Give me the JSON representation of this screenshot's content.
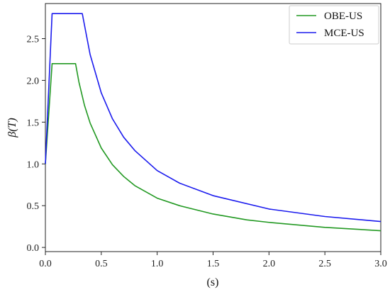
{
  "chart_data": {
    "type": "line",
    "xlabel": "(s)",
    "ylabel": "β(T)",
    "xlim": [
      0.0,
      3.0
    ],
    "ylim": [
      -0.05,
      2.92
    ],
    "x_ticks": [
      0.0,
      0.5,
      1.0,
      1.5,
      2.0,
      2.5,
      3.0
    ],
    "x_tick_labels": [
      "0.0",
      "0.5",
      "1.0",
      "1.5",
      "2.0",
      "2.5",
      "3.0"
    ],
    "y_ticks": [
      0.0,
      0.5,
      1.0,
      1.5,
      2.0,
      2.5
    ],
    "y_tick_labels": [
      "0.0",
      "0.5",
      "1.0",
      "1.5",
      "2.0",
      "2.5"
    ],
    "legend_position": "top-right",
    "grid": false,
    "series": [
      {
        "name": "OBE-US",
        "color": "#229922",
        "x": [
          0.0,
          0.06,
          0.27,
          0.3,
          0.35,
          0.4,
          0.5,
          0.6,
          0.7,
          0.8,
          1.0,
          1.2,
          1.5,
          1.8,
          2.0,
          2.5,
          3.0
        ],
        "y": [
          1.0,
          2.2,
          2.2,
          1.98,
          1.7,
          1.49,
          1.19,
          0.99,
          0.85,
          0.74,
          0.59,
          0.5,
          0.4,
          0.33,
          0.3,
          0.24,
          0.2
        ]
      },
      {
        "name": "MCE-US",
        "color": "#1a1aee",
        "x": [
          0.0,
          0.06,
          0.33,
          0.4,
          0.5,
          0.6,
          0.7,
          0.8,
          1.0,
          1.2,
          1.5,
          2.0,
          2.5,
          3.0
        ],
        "y": [
          1.0,
          2.8,
          2.8,
          2.31,
          1.85,
          1.54,
          1.32,
          1.16,
          0.92,
          0.77,
          0.62,
          0.46,
          0.37,
          0.31
        ]
      }
    ]
  }
}
